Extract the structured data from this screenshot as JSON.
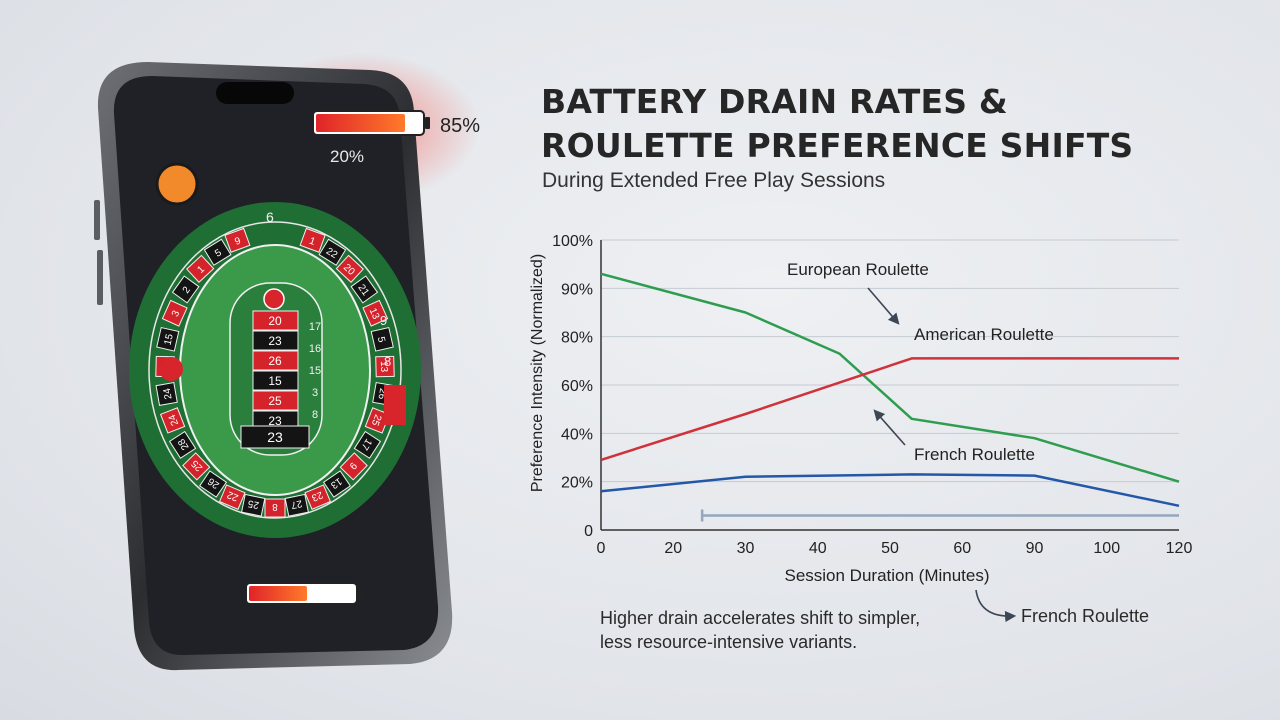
{
  "phone": {
    "battery_top_label": "85%",
    "battery_small_label": "20%",
    "battery_top_level": 0.85,
    "battery_bottom_level": 0.55,
    "wheel": {
      "top_number": "6",
      "outer_numbers": [
        "1",
        "22",
        "20",
        "21",
        "13",
        "5",
        "13",
        "26",
        "25",
        "17",
        "9",
        "13",
        "23",
        "27",
        "8",
        "25",
        "22",
        "26",
        "25",
        "28",
        "24",
        "24",
        "2",
        "15",
        "3",
        "2",
        "1",
        "5",
        "9"
      ],
      "inner_numbers": [
        "20",
        "23",
        "26",
        "15",
        "25",
        "23",
        "17",
        "16",
        "15",
        "3",
        "8"
      ],
      "center_number": "23",
      "side_numbers": [
        "9",
        "8"
      ]
    }
  },
  "title_line1": "BATTERY DRAIN RATES &",
  "title_line2": "ROULETTE PREFERENCE SHIFTS",
  "subtitle": "During Extended Free Play Sessions",
  "caption_line1": "Higher drain accelerates shift to simpler,",
  "caption_line2": "less resource-intensive variants.",
  "caption_target": "French Roulette",
  "colors": {
    "european": "#2f9d4f",
    "american": "#d0313a",
    "french": "#2457a8",
    "battery_bar": "#94a7bd"
  },
  "chart_data": {
    "type": "line",
    "ylabel": "Preference Intensity (Normalized)",
    "xlabel": "Session Duration (Minutes)",
    "x_ticks": [
      "0",
      "20",
      "30",
      "40",
      "50",
      "60",
      "90",
      "100",
      "120"
    ],
    "y_ticks": [
      "0",
      "20%",
      "40%",
      "60%",
      "80%",
      "90%",
      "100%"
    ],
    "series": [
      {
        "name": "European Roulette",
        "color": "#2f9d4f",
        "points": [
          [
            0,
            93
          ],
          [
            30,
            85
          ],
          [
            43,
            73
          ],
          [
            53,
            46
          ],
          [
            90,
            38
          ],
          [
            120,
            20
          ]
        ]
      },
      {
        "name": "American Roulette",
        "color": "#d0313a",
        "points": [
          [
            0,
            29
          ],
          [
            30,
            48
          ],
          [
            53,
            71
          ],
          [
            90,
            71
          ],
          [
            120,
            71
          ]
        ]
      },
      {
        "name": "French Roulette",
        "color": "#2457a8",
        "points": [
          [
            0,
            16
          ],
          [
            30,
            22
          ],
          [
            53,
            23
          ],
          [
            90,
            22.5
          ],
          [
            120,
            10
          ]
        ]
      },
      {
        "name": "",
        "color": "#94a7bd",
        "points": [
          [
            24,
            6
          ],
          [
            120,
            6
          ]
        ]
      }
    ],
    "annotations": [
      {
        "text": "European Roulette"
      },
      {
        "text": "American Roulette"
      },
      {
        "text": "French Roulette"
      }
    ],
    "grid": true
  }
}
